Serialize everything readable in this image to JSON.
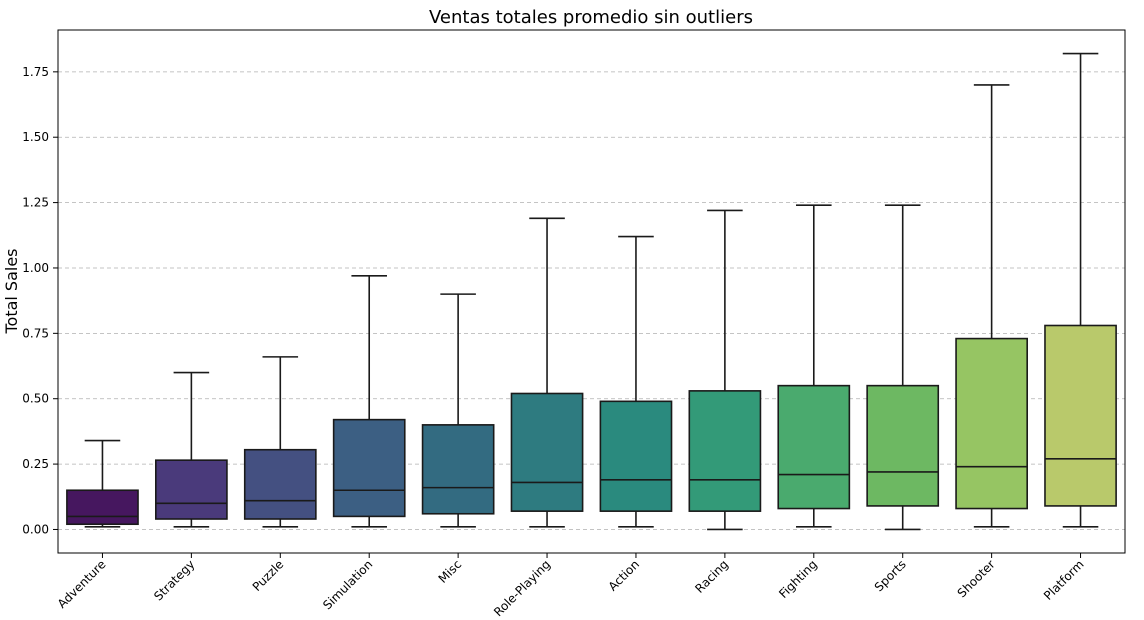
{
  "chart_data": {
    "type": "box",
    "title": "Ventas totales promedio sin outliers",
    "xlabel": "",
    "ylabel": "Total Sales",
    "ylim": [
      -0.09,
      1.91
    ],
    "yticks": [
      0.0,
      0.25,
      0.5,
      0.75,
      1.0,
      1.25,
      1.5,
      1.75
    ],
    "ytick_labels": [
      "0.00",
      "0.25",
      "0.50",
      "0.75",
      "1.00",
      "1.25",
      "1.50",
      "1.75"
    ],
    "grid": "y-dashed",
    "categories": [
      "Adventure",
      "Strategy",
      "Puzzle",
      "Simulation",
      "Misc",
      "Role-Playing",
      "Action",
      "Racing",
      "Fighting",
      "Sports",
      "Shooter",
      "Platform"
    ],
    "boxes": [
      {
        "whislo": 0.01,
        "q1": 0.02,
        "med": 0.05,
        "q3": 0.15,
        "whishi": 0.34,
        "color": "#46175f"
      },
      {
        "whislo": 0.01,
        "q1": 0.04,
        "med": 0.1,
        "q3": 0.265,
        "whishi": 0.6,
        "color": "#4a3a7b"
      },
      {
        "whislo": 0.01,
        "q1": 0.04,
        "med": 0.11,
        "q3": 0.305,
        "whishi": 0.66,
        "color": "#445081"
      },
      {
        "whislo": 0.01,
        "q1": 0.05,
        "med": 0.15,
        "q3": 0.42,
        "whishi": 0.97,
        "color": "#3c5f83"
      },
      {
        "whislo": 0.01,
        "q1": 0.06,
        "med": 0.16,
        "q3": 0.4,
        "whishi": 0.9,
        "color": "#336b81"
      },
      {
        "whislo": 0.01,
        "q1": 0.07,
        "med": 0.18,
        "q3": 0.52,
        "whishi": 1.19,
        "color": "#2e7b80"
      },
      {
        "whislo": 0.01,
        "q1": 0.07,
        "med": 0.19,
        "q3": 0.49,
        "whishi": 1.12,
        "color": "#2a8a7e"
      },
      {
        "whislo": 0.0,
        "q1": 0.07,
        "med": 0.19,
        "q3": 0.53,
        "whishi": 1.22,
        "color": "#339a78"
      },
      {
        "whislo": 0.01,
        "q1": 0.08,
        "med": 0.21,
        "q3": 0.55,
        "whishi": 1.24,
        "color": "#4aaa6e"
      },
      {
        "whislo": 0.0,
        "q1": 0.09,
        "med": 0.22,
        "q3": 0.55,
        "whishi": 1.24,
        "color": "#6db862"
      },
      {
        "whislo": 0.01,
        "q1": 0.08,
        "med": 0.24,
        "q3": 0.73,
        "whishi": 1.7,
        "color": "#96c563"
      },
      {
        "whislo": 0.01,
        "q1": 0.09,
        "med": 0.27,
        "q3": 0.78,
        "whishi": 1.82,
        "color": "#b9c96b"
      }
    ]
  }
}
